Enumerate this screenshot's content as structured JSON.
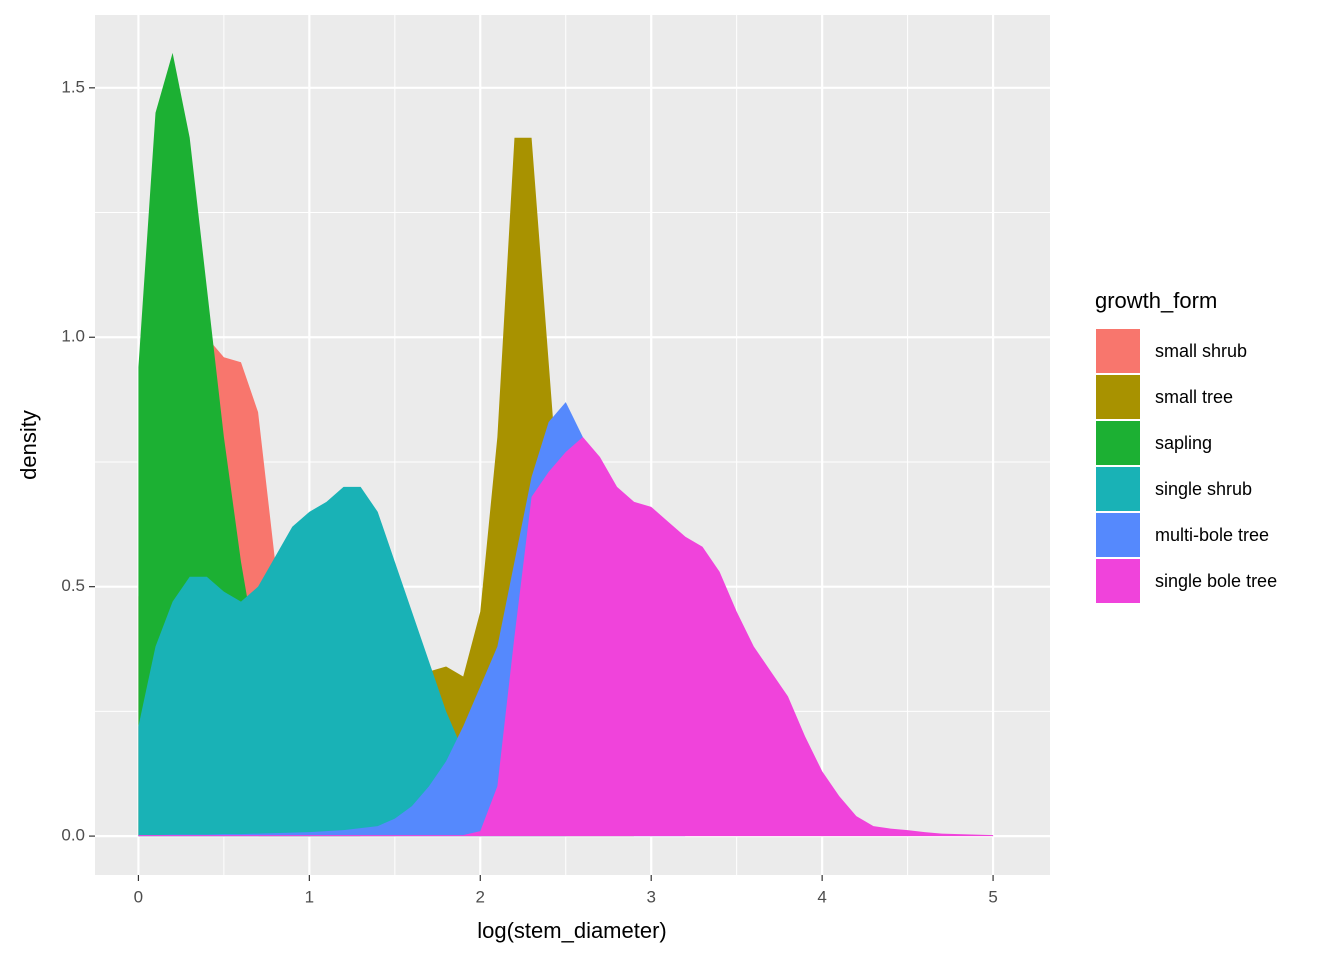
{
  "chart_data": {
    "type": "density",
    "x_label": "log(stem_diameter)",
    "y_label": "density",
    "legend_title": "growth_form",
    "legend": "right",
    "grid": true,
    "minor_grid": true,
    "xlim": [
      -0.254,
      5.333
    ],
    "ylim": [
      -0.078,
      1.646
    ],
    "xticks": [
      0,
      1,
      2,
      3,
      4,
      5
    ],
    "yticks": [
      {
        "value": 0,
        "label": "0.0"
      },
      0.5,
      {
        "value": 1,
        "label": "1.0"
      },
      1.5
    ],
    "x": [
      0,
      0.1,
      0.2,
      0.3,
      0.4,
      0.5,
      0.6,
      0.7,
      0.8,
      0.9,
      1,
      1.1,
      1.2,
      1.3,
      1.4,
      1.5,
      1.6,
      1.7,
      1.8,
      1.9,
      2,
      2.1,
      2.2,
      2.3,
      2.4,
      2.5,
      2.6,
      2.7,
      2.8,
      2.9,
      3,
      3.1,
      3.2,
      3.3,
      3.4,
      3.5,
      3.6,
      3.7,
      3.8,
      3.9,
      4,
      4.1,
      4.2,
      4.3,
      4.4,
      4.5,
      4.6,
      4.7,
      4.8,
      4.9,
      5
    ],
    "series": [
      {
        "name": "small shrub",
        "color": "#F8766D",
        "values": [
          0.48,
          0.75,
          0.92,
          0.99,
          1.0,
          0.96,
          0.95,
          0.85,
          0.55,
          0.3,
          0.15,
          0.07,
          0.03,
          0.01,
          0.005,
          0,
          0,
          0,
          0,
          0,
          0,
          0,
          0,
          0,
          0,
          0,
          0,
          0,
          0,
          0,
          0,
          0,
          0,
          0,
          0,
          0,
          0,
          0,
          0,
          0,
          0,
          0,
          0,
          0,
          0,
          0,
          0,
          0,
          0,
          0,
          0
        ]
      },
      {
        "name": "small tree",
        "color": "#A89200",
        "values": [
          0,
          0,
          0,
          0,
          0,
          0,
          0,
          0,
          0.005,
          0.01,
          0.02,
          0.03,
          0.05,
          0.08,
          0.12,
          0.2,
          0.28,
          0.33,
          0.34,
          0.32,
          0.45,
          0.8,
          1.4,
          1.4,
          0.95,
          0.5,
          0.2,
          0.05,
          0.01,
          0,
          0,
          0,
          0,
          0,
          0,
          0,
          0,
          0,
          0,
          0,
          0,
          0,
          0,
          0,
          0,
          0,
          0,
          0,
          0,
          0,
          0
        ]
      },
      {
        "name": "sapling",
        "color": "#1CB033",
        "values": [
          0.94,
          1.45,
          1.57,
          1.4,
          1.1,
          0.8,
          0.55,
          0.35,
          0.2,
          0.1,
          0.04,
          0.015,
          0.005,
          0,
          0,
          0,
          0,
          0,
          0,
          0,
          0,
          0,
          0,
          0,
          0,
          0,
          0,
          0,
          0,
          0,
          0,
          0,
          0,
          0,
          0,
          0,
          0,
          0,
          0,
          0,
          0,
          0,
          0,
          0,
          0,
          0,
          0,
          0,
          0,
          0,
          0
        ]
      },
      {
        "name": "single shrub",
        "color": "#19B2B6",
        "values": [
          0.22,
          0.38,
          0.47,
          0.52,
          0.52,
          0.49,
          0.47,
          0.5,
          0.56,
          0.62,
          0.65,
          0.67,
          0.7,
          0.7,
          0.65,
          0.55,
          0.45,
          0.35,
          0.25,
          0.17,
          0.1,
          0.05,
          0.02,
          0.01,
          0.005,
          0,
          0,
          0,
          0,
          0,
          0,
          0,
          0,
          0,
          0,
          0,
          0,
          0,
          0,
          0,
          0,
          0,
          0,
          0,
          0,
          0,
          0,
          0,
          0,
          0,
          0
        ]
      },
      {
        "name": "multi-bole tree",
        "color": "#5589FD",
        "values": [
          0.002,
          0.002,
          0.003,
          0.003,
          0.003,
          0.004,
          0.004,
          0.005,
          0.006,
          0.007,
          0.008,
          0.01,
          0.012,
          0.016,
          0.02,
          0.035,
          0.06,
          0.1,
          0.15,
          0.22,
          0.3,
          0.38,
          0.55,
          0.72,
          0.83,
          0.87,
          0.8,
          0.6,
          0.35,
          0.15,
          0.05,
          0.01,
          0,
          0,
          0,
          0,
          0,
          0,
          0,
          0,
          0,
          0,
          0,
          0,
          0,
          0,
          0,
          0,
          0,
          0,
          0
        ]
      },
      {
        "name": "single bole tree",
        "color": "#F043DB",
        "values": [
          0.002,
          0.002,
          0.002,
          0.002,
          0.002,
          0.002,
          0.002,
          0.002,
          0.002,
          0.002,
          0.002,
          0.002,
          0.002,
          0.002,
          0.002,
          0.002,
          0.002,
          0.002,
          0.002,
          0.002,
          0.01,
          0.1,
          0.4,
          0.68,
          0.73,
          0.77,
          0.8,
          0.76,
          0.7,
          0.67,
          0.66,
          0.63,
          0.6,
          0.58,
          0.53,
          0.45,
          0.38,
          0.33,
          0.28,
          0.2,
          0.13,
          0.08,
          0.04,
          0.02,
          0.015,
          0.012,
          0.008,
          0.005,
          0.004,
          0.003,
          0.002
        ]
      }
    ]
  }
}
